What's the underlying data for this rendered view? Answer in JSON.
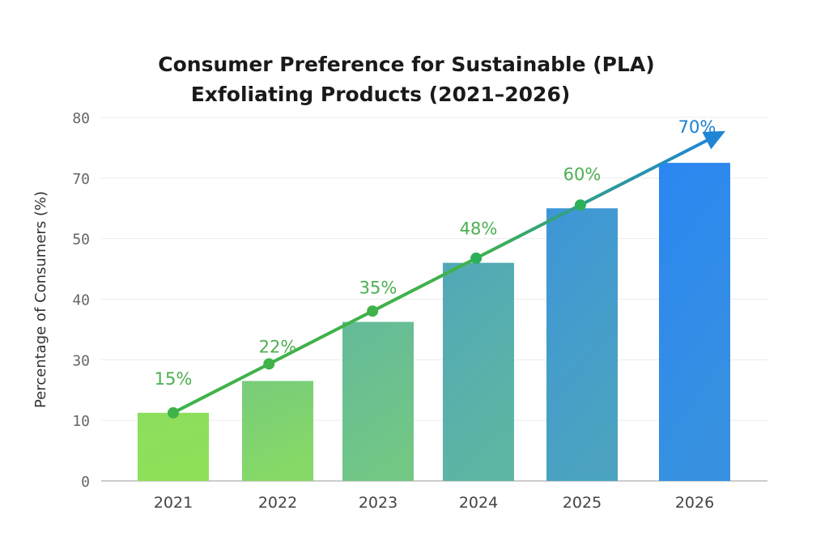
{
  "chart_data": {
    "type": "bar",
    "title_line1": "Consumer Preference for Sustainable (PLA)",
    "title_line2": "Exfoliating Products (2021–2026)",
    "xlabel": "",
    "ylabel": "Percentage of Consumers (%)",
    "y_tick_labels": [
      "0",
      "10",
      "30",
      "40",
      "50",
      "70",
      "80"
    ],
    "ylim": [
      0,
      80
    ],
    "grid": true,
    "categories": [
      "2021",
      "2022",
      "2023",
      "2024",
      "2025",
      "2026"
    ],
    "values": [
      15,
      22,
      35,
      48,
      60,
      70
    ],
    "data_labels": [
      "15%",
      "22%",
      "35%",
      "48%",
      "60%",
      "70%"
    ],
    "trend_line": "arrow",
    "colors": {
      "bar_start": "#8ee05a",
      "bar_end": "#2b86f2",
      "trend_line": "#3fb24a",
      "trend_arrow": "#1f86d6",
      "label_green": "#4caf50",
      "label_blue": "#1a7fcf"
    }
  }
}
